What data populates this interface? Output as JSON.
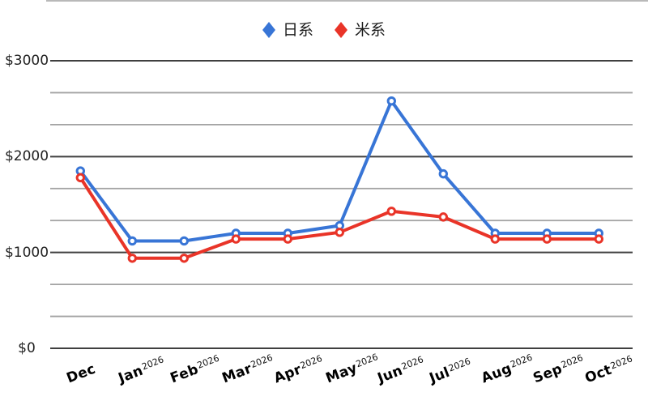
{
  "legend": {
    "items": [
      {
        "label": "日系",
        "color": "#3875d6"
      },
      {
        "label": "米系",
        "color": "#e93428"
      }
    ]
  },
  "chart_data": {
    "type": "line",
    "title": "",
    "xlabel": "",
    "ylabel": "",
    "grid": true,
    "legend_position": "top",
    "marker": "open-circle",
    "legend_marker": "diamond",
    "categories": [
      {
        "month": "Dec",
        "year": ""
      },
      {
        "month": "Jan",
        "year": "2026"
      },
      {
        "month": "Feb",
        "year": "2026"
      },
      {
        "month": "Mar",
        "year": "2026"
      },
      {
        "month": "Apr",
        "year": "2026"
      },
      {
        "month": "May",
        "year": "2026"
      },
      {
        "month": "Jun",
        "year": "2026"
      },
      {
        "month": "Jul",
        "year": "2026"
      },
      {
        "month": "Aug",
        "year": "2026"
      },
      {
        "month": "Sep",
        "year": "2026"
      },
      {
        "month": "Oct",
        "year": "2026"
      }
    ],
    "series": [
      {
        "name": "日系",
        "color": "#3875d6",
        "values": [
          1850,
          1120,
          1120,
          1200,
          1200,
          1280,
          2580,
          1820,
          1200,
          1200,
          1200
        ]
      },
      {
        "name": "米系",
        "color": "#e93428",
        "values": [
          1780,
          940,
          940,
          1140,
          1140,
          1210,
          1430,
          1370,
          1140,
          1140,
          1140
        ]
      }
    ],
    "y_axis": {
      "ticks": [
        {
          "label": "$3000",
          "value": 3000
        },
        {
          "label": "$2000",
          "value": 2000
        },
        {
          "label": "$1000",
          "value": 1000
        },
        {
          "label": "$0",
          "value": 0
        }
      ],
      "ylim": [
        0,
        3000
      ],
      "minor_gridlines_per_major": 3
    }
  },
  "colors": {
    "major_gridline": "#3f3f3f",
    "minor_gridline": "#a2a2a2",
    "point_fill": "#ffffff"
  }
}
